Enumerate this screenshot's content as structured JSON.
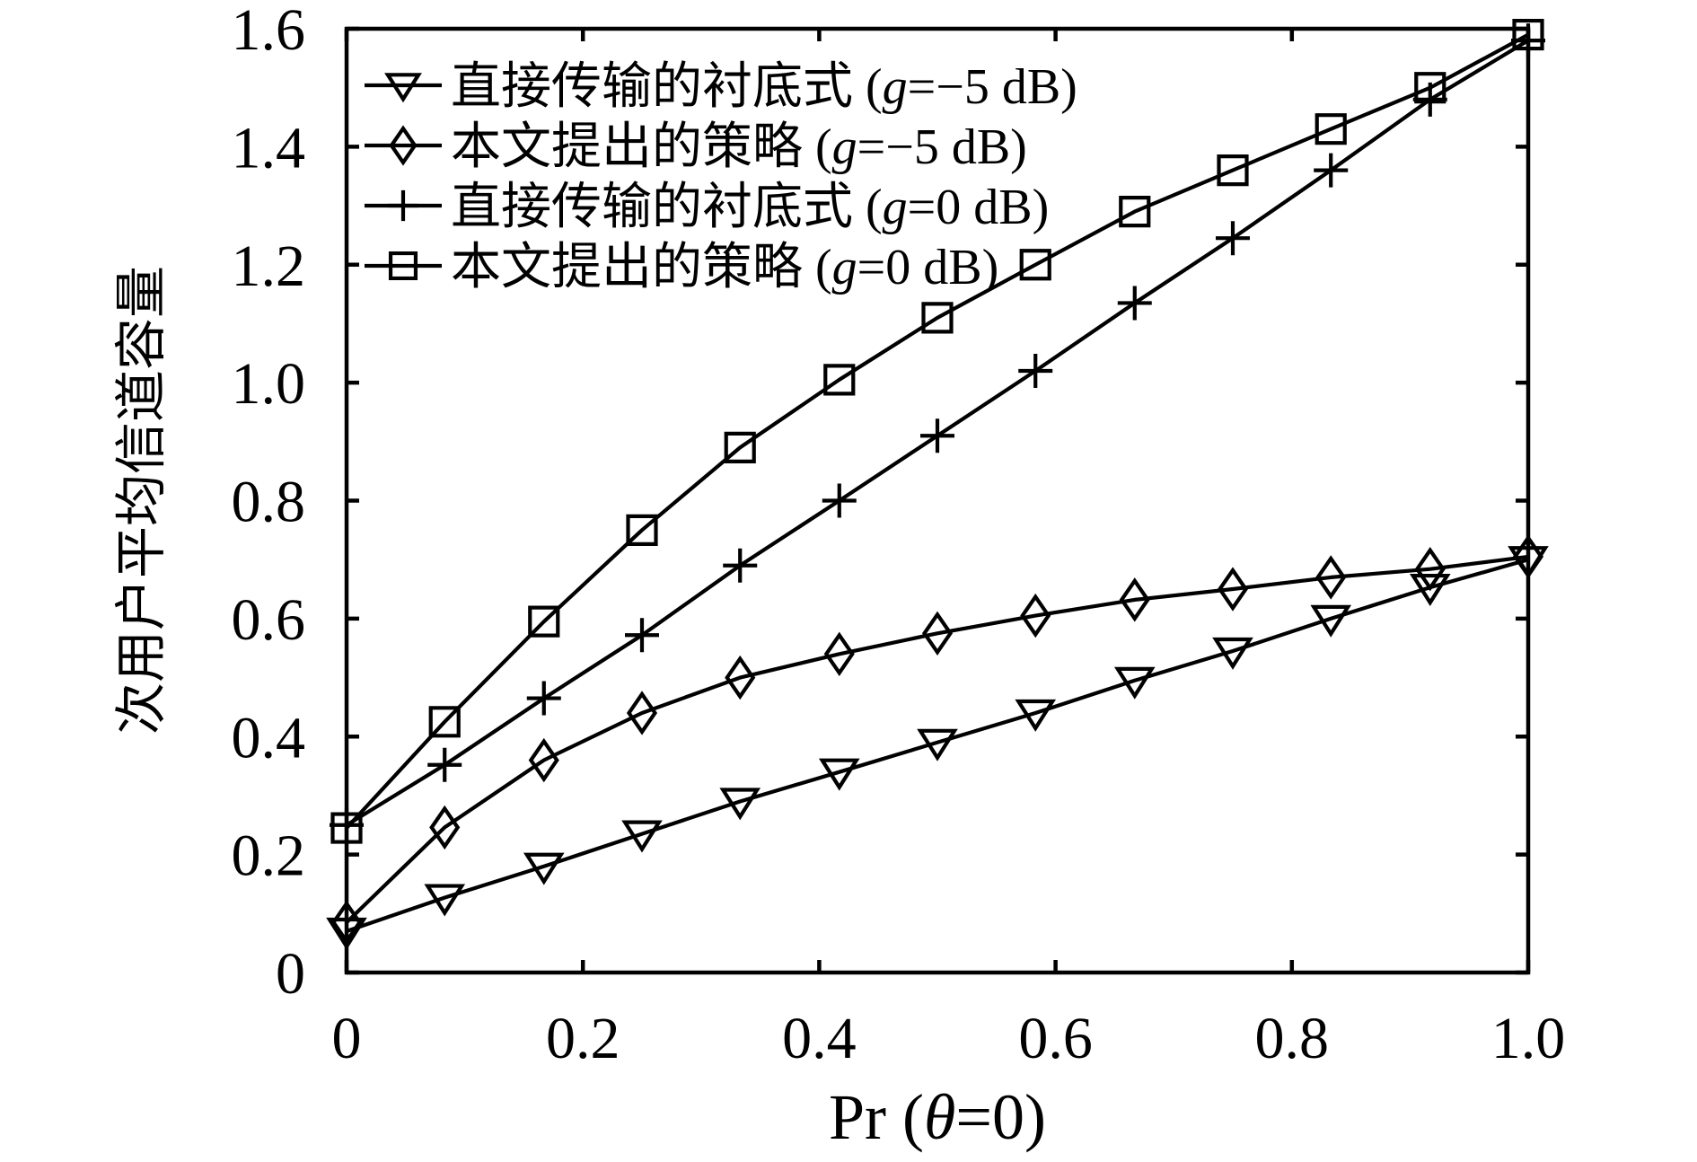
{
  "figure": {
    "background": "#ffffff",
    "line_color": "#000000"
  },
  "chart_data": {
    "type": "line",
    "title": "",
    "xlabel": "Pr (θ=0)",
    "xlabel_parts": [
      "Pr (",
      "θ",
      "=0)"
    ],
    "ylabel": "次用户平均信道容量",
    "xlim": [
      0,
      1.0
    ],
    "ylim": [
      0,
      1.6
    ],
    "x_tick_values": [
      0,
      0.2,
      0.4,
      0.6,
      0.8,
      1.0
    ],
    "x_ticks": [
      "0",
      "0.2",
      "0.4",
      "0.6",
      "0.8",
      "1.0"
    ],
    "y_tick_values": [
      0,
      0.2,
      0.4,
      0.6,
      0.8,
      1.0,
      1.2,
      1.4,
      1.6
    ],
    "y_ticks": [
      "0",
      "0.2",
      "0.4",
      "0.6",
      "0.8",
      "1.0",
      "1.2",
      "1.4",
      "1.6"
    ],
    "grid": false,
    "legend_position": "top-left-inside",
    "x": [
      0,
      0.083,
      0.167,
      0.25,
      0.333,
      0.417,
      0.5,
      0.583,
      0.667,
      0.75,
      0.833,
      0.917,
      1.0
    ],
    "series": [
      {
        "key": "direct-underlay-gm5",
        "name": "直接传输的衬底式 (g=−5 dB)",
        "label_parts": [
          "直接传输的衬底式 (",
          "g",
          "=−5 dB)"
        ],
        "marker": "triangle-down",
        "values": [
          0.07,
          0.127,
          0.18,
          0.235,
          0.29,
          0.34,
          0.39,
          0.44,
          0.495,
          0.545,
          0.6,
          0.653,
          0.7
        ]
      },
      {
        "key": "proposed-gm5",
        "name": "本文提出的策略 (g=−5 dB)",
        "label_parts": [
          "本文提出的策略 (",
          "g",
          "=−5 dB)"
        ],
        "marker": "diamond",
        "values": [
          0.085,
          0.246,
          0.36,
          0.44,
          0.5,
          0.54,
          0.575,
          0.605,
          0.632,
          0.65,
          0.67,
          0.684,
          0.705
        ]
      },
      {
        "key": "direct-underlay-g0",
        "name": "直接传输的衬底式 (g=0 dB)",
        "label_parts": [
          "直接传输的衬底式 (",
          "g",
          "=0 dB)"
        ],
        "marker": "plus",
        "values": [
          0.25,
          0.352,
          0.465,
          0.572,
          0.69,
          0.8,
          0.91,
          1.02,
          1.135,
          1.245,
          1.36,
          1.48,
          1.58
        ]
      },
      {
        "key": "proposed-g0",
        "name": "本文提出的策略 (g=0 dB)",
        "label_parts": [
          "本文提出的策略 (",
          "g",
          "=0 dB)"
        ],
        "marker": "square",
        "values": [
          0.245,
          0.425,
          0.595,
          0.75,
          0.89,
          1.005,
          1.11,
          1.2,
          1.29,
          1.36,
          1.43,
          1.5,
          1.59
        ]
      }
    ]
  }
}
